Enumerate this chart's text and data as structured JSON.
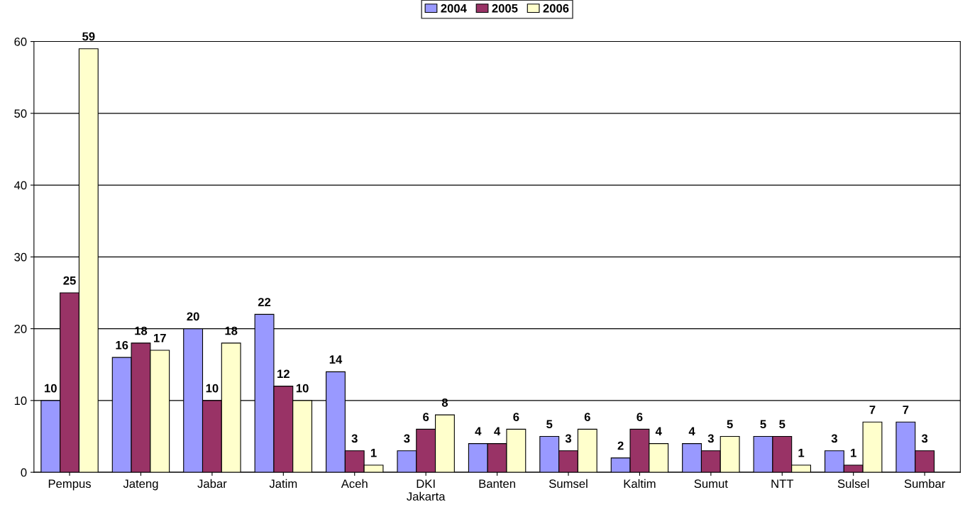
{
  "chart_data": {
    "type": "bar",
    "categories": [
      "Pempus",
      "Jateng",
      "Jabar",
      "Jatim",
      "Aceh",
      "DKI\nJakarta",
      "Banten",
      "Sumsel",
      "Kaltim",
      "Sumut",
      "NTT",
      "Sulsel",
      "Sumbar"
    ],
    "series": [
      {
        "name": "2004",
        "color": "#9999ff",
        "values": [
          10,
          16,
          20,
          22,
          14,
          3,
          4,
          5,
          2,
          4,
          5,
          3,
          7
        ]
      },
      {
        "name": "2005",
        "color": "#993366",
        "values": [
          25,
          18,
          10,
          12,
          3,
          6,
          4,
          3,
          6,
          3,
          5,
          1,
          3
        ]
      },
      {
        "name": "2006",
        "color": "#ffffcc",
        "values": [
          59,
          17,
          18,
          10,
          1,
          8,
          6,
          6,
          4,
          5,
          1,
          7,
          null
        ]
      }
    ],
    "ylim": [
      0,
      60
    ],
    "yticks": [
      0,
      10,
      20,
      30,
      40,
      50,
      60
    ],
    "grid": "y",
    "legend": "top",
    "data_labels": true
  }
}
